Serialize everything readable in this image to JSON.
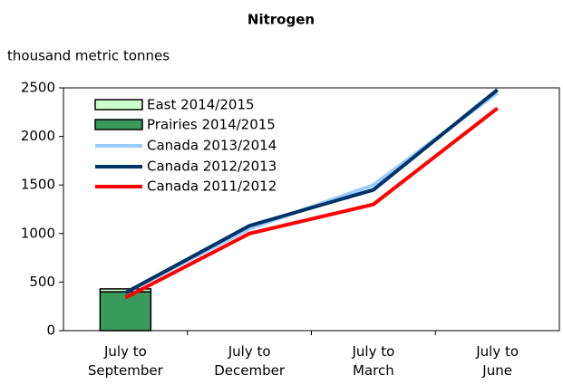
{
  "chart_data": {
    "type": "line",
    "title": "Nitrogen",
    "y_label": "thousand metric tonnes",
    "categories": [
      "July to\nSeptember",
      "July to\nDecember",
      "July to\nMarch",
      "July to\nJune"
    ],
    "series": [
      {
        "name": "East 2014/2015",
        "type": "bar",
        "color": "#ccffcc",
        "values": [
          30,
          null,
          null,
          null
        ]
      },
      {
        "name": "Prairies 2014/2015",
        "type": "bar",
        "color": "#3a9a5c",
        "values": [
          400,
          null,
          null,
          null
        ]
      },
      {
        "name": "Canada 2013/2014",
        "type": "line",
        "color": "#99ccff",
        "values": [
          390,
          1050,
          1500,
          2450
        ]
      },
      {
        "name": "Canada 2012/2013",
        "type": "line",
        "color": "#003366",
        "values": [
          390,
          1080,
          1450,
          2480
        ]
      },
      {
        "name": "Canada 2011/2012",
        "type": "line",
        "color": "#ff0000",
        "values": [
          340,
          1000,
          1300,
          2290
        ]
      }
    ],
    "ylim": [
      0,
      2500
    ],
    "yticks": [
      0,
      500,
      1000,
      1500,
      2000,
      2500
    ],
    "legend": "upper left"
  }
}
